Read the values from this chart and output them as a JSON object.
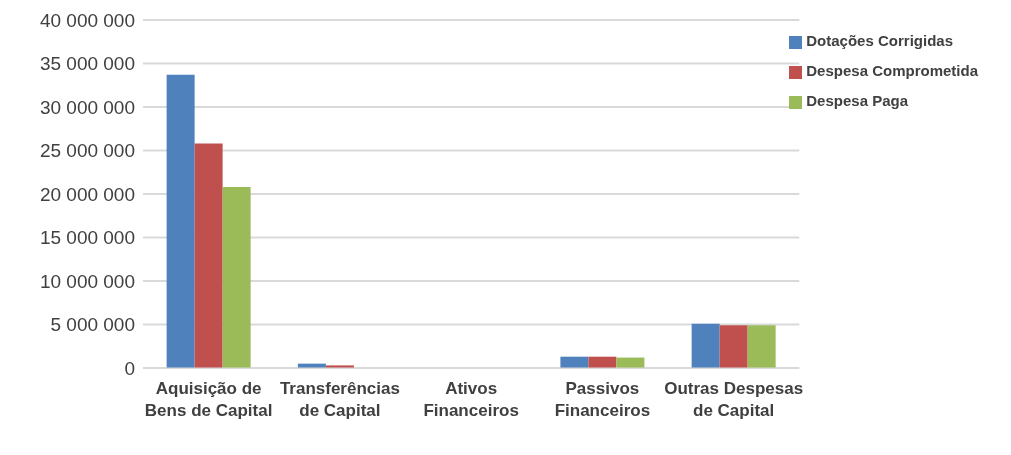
{
  "chart_data": {
    "type": "bar",
    "categories": [
      "Aquisição de Bens de Capital",
      "Transferências de Capital",
      "Ativos Financeiros",
      "Passivos Financeiros",
      "Outras Despesas de Capital"
    ],
    "series": [
      {
        "name": "Dotações Corrigidas",
        "color": "#4f81bd",
        "values": [
          33700000,
          500000,
          0,
          1300000,
          5100000
        ]
      },
      {
        "name": "Despesa Comprometida",
        "color": "#c0504d",
        "values": [
          25800000,
          300000,
          0,
          1300000,
          4900000
        ]
      },
      {
        "name": "Despesa Paga",
        "color": "#9bbb59",
        "values": [
          20800000,
          0,
          0,
          1200000,
          4900000
        ]
      }
    ],
    "ylim": [
      0,
      40000000
    ],
    "yticks": [
      {
        "value": 0,
        "label": "0"
      },
      {
        "value": 5000000,
        "label": "5 000 000"
      },
      {
        "value": 10000000,
        "label": "10 000 000"
      },
      {
        "value": 15000000,
        "label": "15 000 000"
      },
      {
        "value": 20000000,
        "label": "20 000 000"
      },
      {
        "value": 25000000,
        "label": "25 000 000"
      },
      {
        "value": 30000000,
        "label": "30 000 000"
      },
      {
        "value": 35000000,
        "label": "35 000 000"
      },
      {
        "value": 40000000,
        "label": "40 000 000"
      }
    ],
    "grid": "y",
    "legend": "top right"
  }
}
